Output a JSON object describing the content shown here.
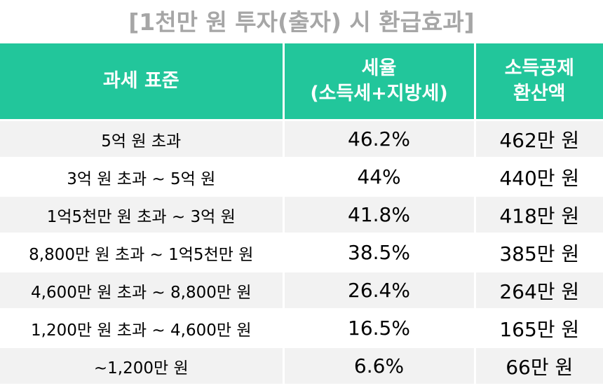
{
  "title": "[1천만 원 투자(출자) 시 환급효과]",
  "headers": {
    "col1": "과세 표준",
    "col2_line1": "세율",
    "col2_line2": "(소득세+지방세)",
    "col3_line1": "소득공제",
    "col3_line2": "환산액"
  },
  "rows": [
    {
      "range": "5억 원 초과",
      "rate": "46.2%",
      "amount": "462만 원"
    },
    {
      "range": "3억 원 초과 ~ 5억 원",
      "rate": "44%",
      "amount": "440만 원"
    },
    {
      "range": "1억5천만 원 초과 ~ 3억 원",
      "rate": "41.8%",
      "amount": "418만 원"
    },
    {
      "range": "8,800만 원 초과 ~ 1억5천만 원",
      "rate": "38.5%",
      "amount": "385만 원"
    },
    {
      "range": "4,600만 원 초과 ~ 8,800만 원",
      "rate": "26.4%",
      "amount": "264만 원"
    },
    {
      "range": "1,200만 원 초과 ~ 4,600만 원",
      "rate": "16.5%",
      "amount": "165만 원"
    },
    {
      "range": "~1,200만 원",
      "rate": "6.6%",
      "amount": "66만 원"
    }
  ]
}
